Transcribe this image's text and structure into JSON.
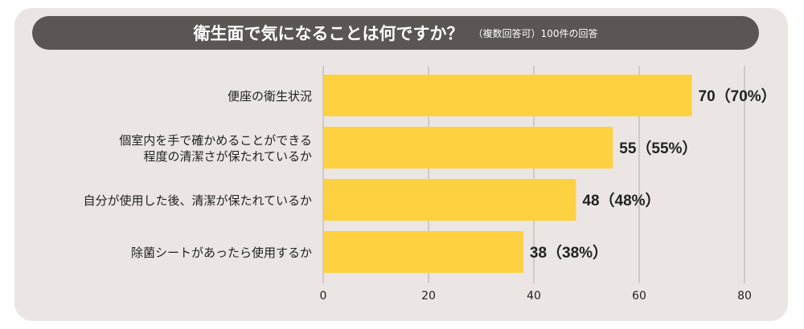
{
  "title": "衛生面で気になることは何ですか？",
  "subtitle": "（複数回答可）100件の回答",
  "colors": {
    "panel": "#ebe6e3",
    "title_bg": "#5b5553",
    "bar": "#fdd13f",
    "grid": "#b3aeab",
    "text": "#222222"
  },
  "chart_data": {
    "type": "bar",
    "orientation": "horizontal",
    "categories": [
      [
        "便座の衛生状況"
      ],
      [
        "個室内を手で確かめることができる",
        "程度の清潔さが保たれているか"
      ],
      [
        "自分が使用した後、清潔が保たれているか"
      ],
      [
        "除菌シートがあったら使用するか"
      ]
    ],
    "values": [
      70,
      55,
      48,
      38
    ],
    "value_labels": [
      "70（70%）",
      "55（55%）",
      "48（48%）",
      "38（38%）"
    ],
    "xlim": [
      0,
      80
    ],
    "xticks": [
      0,
      20,
      40,
      60,
      80
    ],
    "grid": true
  }
}
